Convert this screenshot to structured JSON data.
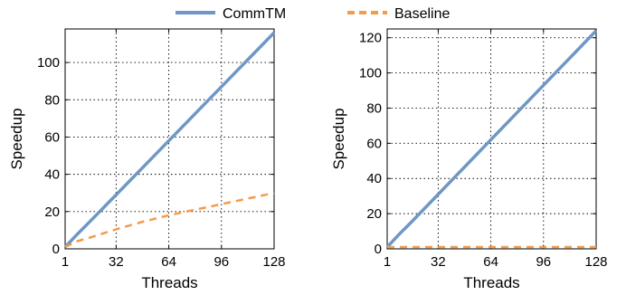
{
  "legend": {
    "position": "top-center",
    "items": [
      {
        "label": "CommTM",
        "color": "#6f97c6",
        "style": "solid"
      },
      {
        "label": "Baseline",
        "color": "#f29c4a",
        "style": "dashed"
      }
    ]
  },
  "chart_data": [
    {
      "type": "line",
      "xlabel": "Threads",
      "ylabel": "Speedup",
      "xlim": [
        1,
        128
      ],
      "ylim": [
        0,
        118
      ],
      "x_ticks": [
        1,
        32,
        64,
        96,
        128
      ],
      "y_ticks": [
        0,
        20,
        40,
        60,
        80,
        100
      ],
      "grid": true,
      "x": [
        1,
        8,
        16,
        32,
        48,
        64,
        80,
        96,
        112,
        128
      ],
      "series": [
        {
          "name": "CommTM",
          "color": "#6f97c6",
          "style": "solid",
          "values": [
            1,
            7.5,
            14.6,
            29.0,
            43.5,
            58.0,
            72.5,
            87.0,
            101.5,
            116.0
          ]
        },
        {
          "name": "Baseline",
          "color": "#f29c4a",
          "style": "dashed",
          "values": [
            1,
            4.0,
            6.0,
            10.5,
            14.5,
            18.0,
            21.0,
            24.0,
            27.0,
            30.0
          ]
        }
      ]
    },
    {
      "type": "line",
      "xlabel": "Threads",
      "ylabel": "Speedup",
      "xlim": [
        1,
        128
      ],
      "ylim": [
        0,
        125
      ],
      "x_ticks": [
        1,
        32,
        64,
        96,
        128
      ],
      "y_ticks": [
        0,
        20,
        40,
        60,
        80,
        100,
        120
      ],
      "grid": true,
      "x": [
        1,
        8,
        16,
        32,
        48,
        64,
        80,
        96,
        112,
        128
      ],
      "series": [
        {
          "name": "CommTM",
          "color": "#6f97c6",
          "style": "solid",
          "values": [
            1,
            8.0,
            15.5,
            31.0,
            46.5,
            62.0,
            77.5,
            93.0,
            108.5,
            124.0
          ]
        },
        {
          "name": "Baseline",
          "color": "#f29c4a",
          "style": "dashed",
          "values": [
            1,
            1,
            1,
            1,
            1,
            1,
            1,
            1,
            1,
            1
          ]
        }
      ]
    }
  ]
}
